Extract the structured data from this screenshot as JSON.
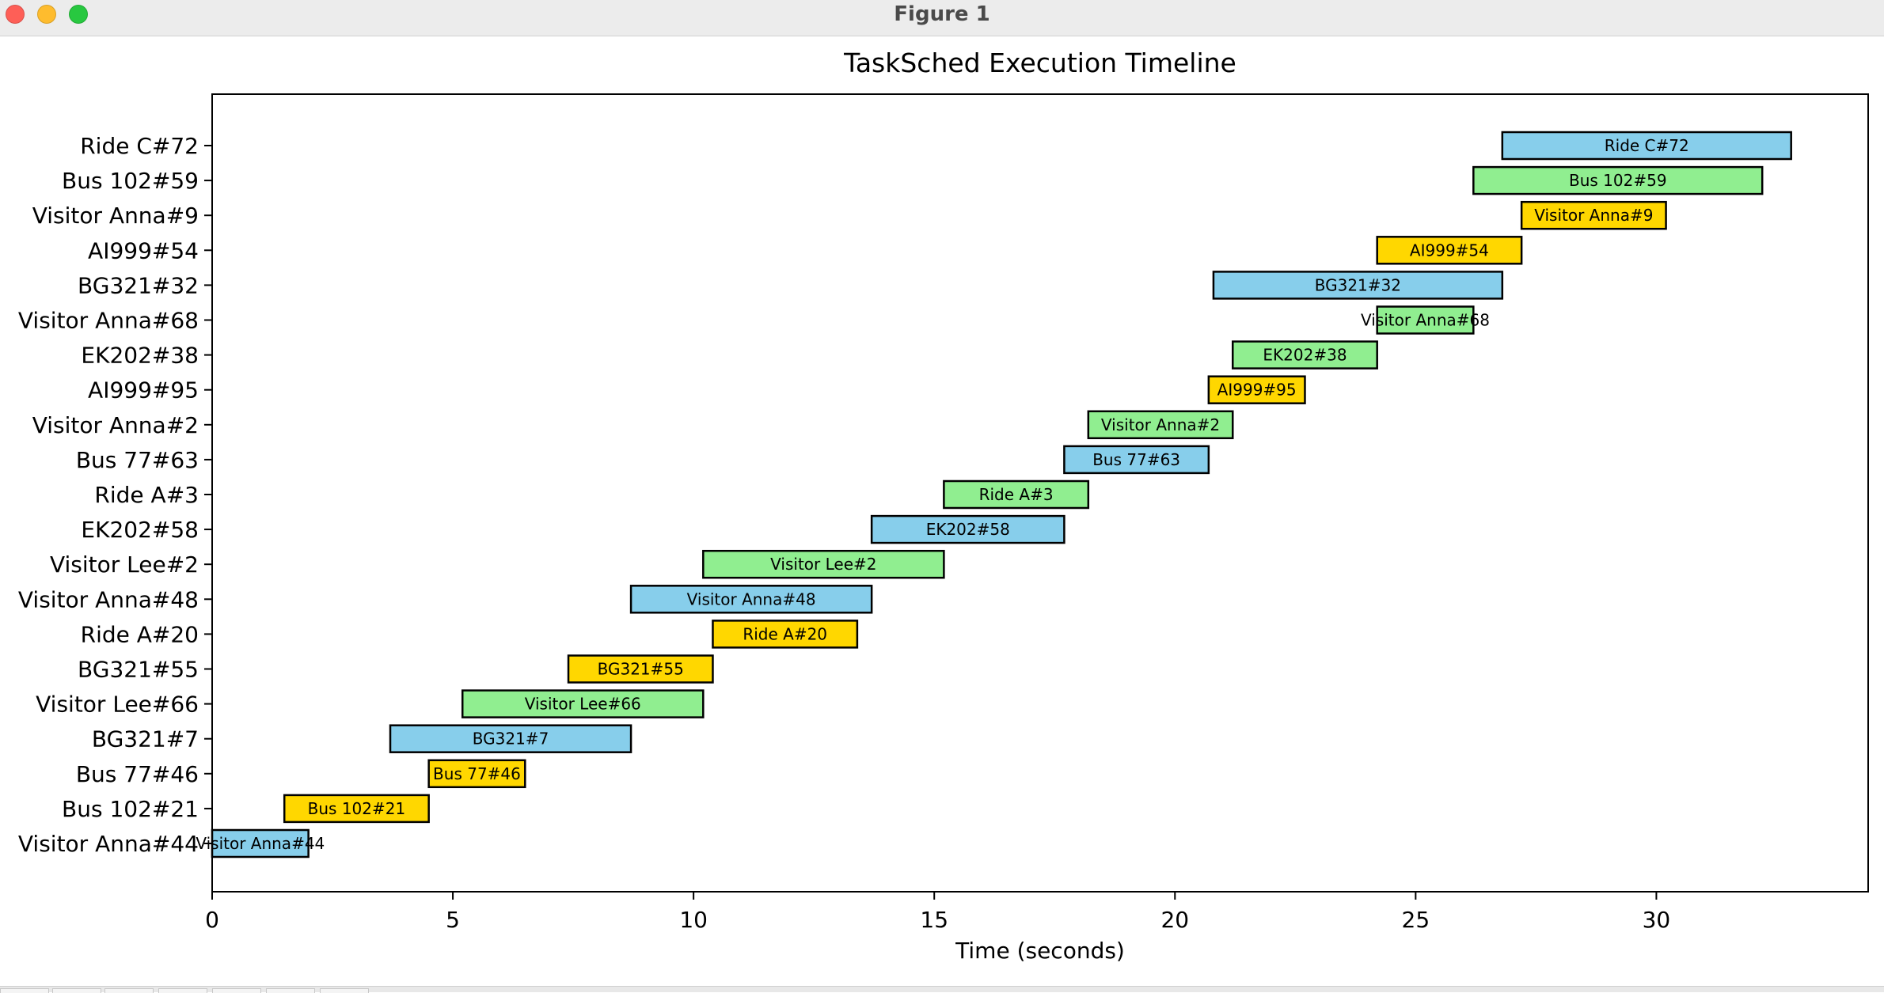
{
  "window": {
    "title": "Figure 1",
    "controls": [
      "close-icon",
      "minimize-icon",
      "maximize-icon"
    ]
  },
  "chart_data": {
    "type": "gantt",
    "title": "TaskSched Execution Timeline",
    "xlabel": "Time (seconds)",
    "ylabel": "",
    "xlim": [
      0,
      34.4
    ],
    "xticks": [
      0,
      5,
      10,
      15,
      20,
      25,
      30
    ],
    "grid": false,
    "legend": "none",
    "colors": {
      "blue": "#87ceeb",
      "green": "#90ee90",
      "gold": "#ffd700",
      "edge": "#000000"
    },
    "tasks": [
      {
        "label": "Visitor Anna#44",
        "start": 0.0,
        "end": 2.0,
        "color": "blue"
      },
      {
        "label": "Bus 102#21",
        "start": 1.5,
        "end": 4.5,
        "color": "gold"
      },
      {
        "label": "Bus 77#46",
        "start": 4.5,
        "end": 6.5,
        "color": "gold"
      },
      {
        "label": "BG321#7",
        "start": 3.7,
        "end": 8.7,
        "color": "blue"
      },
      {
        "label": "Visitor Lee#66",
        "start": 5.2,
        "end": 10.2,
        "color": "green"
      },
      {
        "label": "BG321#55",
        "start": 7.4,
        "end": 10.4,
        "color": "gold"
      },
      {
        "label": "Ride A#20",
        "start": 10.4,
        "end": 13.4,
        "color": "gold"
      },
      {
        "label": "Visitor Anna#48",
        "start": 8.7,
        "end": 13.7,
        "color": "blue"
      },
      {
        "label": "Visitor Lee#2",
        "start": 10.2,
        "end": 15.2,
        "color": "green"
      },
      {
        "label": "EK202#58",
        "start": 13.7,
        "end": 17.7,
        "color": "blue"
      },
      {
        "label": "Ride A#3",
        "start": 15.2,
        "end": 18.2,
        "color": "green"
      },
      {
        "label": "Bus 77#63",
        "start": 17.7,
        "end": 20.7,
        "color": "blue"
      },
      {
        "label": "Visitor Anna#2",
        "start": 18.2,
        "end": 21.2,
        "color": "green"
      },
      {
        "label": "AI999#95",
        "start": 20.7,
        "end": 22.7,
        "color": "gold"
      },
      {
        "label": "EK202#38",
        "start": 21.2,
        "end": 24.2,
        "color": "green"
      },
      {
        "label": "Visitor Anna#68",
        "start": 24.2,
        "end": 26.2,
        "color": "green"
      },
      {
        "label": "BG321#32",
        "start": 20.8,
        "end": 26.8,
        "color": "blue"
      },
      {
        "label": "AI999#54",
        "start": 24.2,
        "end": 27.2,
        "color": "gold"
      },
      {
        "label": "Visitor Anna#9",
        "start": 27.2,
        "end": 30.2,
        "color": "gold"
      },
      {
        "label": "Bus 102#59",
        "start": 26.2,
        "end": 32.2,
        "color": "green"
      },
      {
        "label": "Ride C#72",
        "start": 26.8,
        "end": 32.8,
        "color": "blue"
      }
    ]
  }
}
